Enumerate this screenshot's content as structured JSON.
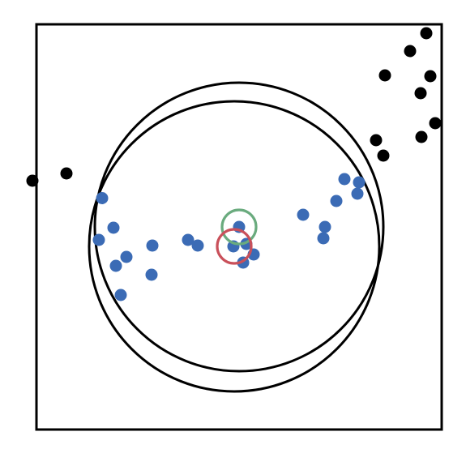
{
  "chart_data": {
    "type": "scatter",
    "title": "",
    "xlabel": "",
    "ylabel": "",
    "xlim": [
      -1.0,
      1.0
    ],
    "ylim": [
      -1.0,
      1.0
    ],
    "grid": false,
    "ticks": false,
    "colors": {
      "inlier": "#3b6bb5",
      "outlier": "#000000",
      "center_a": "#6aab7e",
      "center_b": "#c9505a",
      "circle": "#000000",
      "frame": "#000000"
    },
    "series": [
      {
        "role": "inliers",
        "color": "#3b6bb5",
        "points": [
          [
            -0.676,
            0.142
          ],
          [
            -0.62,
            -0.004
          ],
          [
            -0.692,
            -0.064
          ],
          [
            -0.556,
            -0.148
          ],
          [
            -0.608,
            -0.192
          ],
          [
            -0.432,
            -0.236
          ],
          [
            -0.584,
            -0.336
          ],
          [
            -0.428,
            -0.092
          ],
          [
            -0.252,
            -0.064
          ],
          [
            -0.204,
            -0.092
          ],
          [
            0.0,
            0.0
          ],
          [
            -0.028,
            -0.096
          ],
          [
            0.036,
            -0.084
          ],
          [
            0.072,
            -0.136
          ],
          [
            0.02,
            -0.176
          ],
          [
            0.316,
            0.06
          ],
          [
            0.424,
            0.0
          ],
          [
            0.416,
            -0.056
          ],
          [
            0.48,
            0.128
          ],
          [
            0.52,
            0.236
          ],
          [
            0.592,
            0.22
          ],
          [
            0.584,
            0.164
          ]
        ]
      },
      {
        "role": "outliers",
        "color": "#000000",
        "points": [
          [
            -1.02,
            0.228
          ],
          [
            -0.852,
            0.264
          ],
          [
            0.676,
            0.428
          ],
          [
            0.712,
            0.352
          ],
          [
            0.72,
            0.748
          ],
          [
            0.844,
            0.868
          ],
          [
            0.896,
            0.66
          ],
          [
            0.924,
            0.956
          ],
          [
            0.944,
            0.744
          ],
          [
            0.968,
            0.512
          ],
          [
            0.9,
            0.444
          ]
        ]
      }
    ],
    "circles": [
      {
        "role": "fit_a",
        "center": [
          0.0,
          0.0
        ],
        "radius": 0.712,
        "color": "#000000"
      },
      {
        "role": "fit_b",
        "center": [
          -0.024,
          -0.096
        ],
        "radius": 0.716,
        "color": "#000000"
      },
      {
        "role": "center_marker_a",
        "center": [
          0.0,
          0.0
        ],
        "radius": 0.084,
        "color": "#6aab7e"
      },
      {
        "role": "center_marker_b",
        "center": [
          -0.024,
          -0.096
        ],
        "radius": 0.084,
        "color": "#c9505a"
      }
    ]
  }
}
